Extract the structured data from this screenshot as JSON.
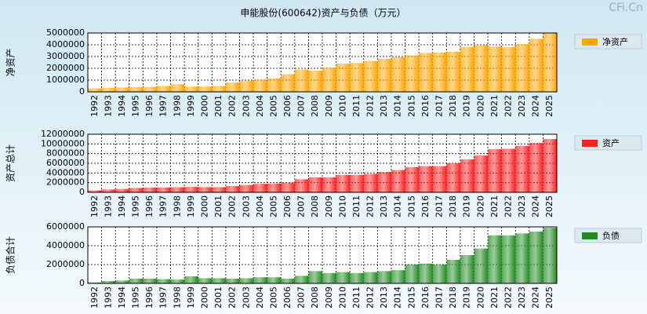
{
  "title": "申能股份(600642)资产与负债（万元）",
  "watermark": "CFi.Cn",
  "chart_data": [
    {
      "type": "bar",
      "ylabel": "净资产",
      "categories": [
        "1992",
        "1993",
        "1994",
        "1995",
        "1996",
        "1997",
        "1998",
        "1999",
        "2000",
        "2001",
        "2002",
        "2003",
        "2004",
        "2005",
        "2006",
        "2007",
        "2008",
        "2009",
        "2010",
        "2011",
        "2012",
        "2013",
        "2014",
        "2015",
        "2016",
        "2017",
        "2018",
        "2019",
        "2020",
        "2021",
        "2022",
        "2023",
        "2024",
        "2025"
      ],
      "series": [
        {
          "name": "净资产",
          "color": "#ffa500",
          "values": [
            300000,
            350000,
            380000,
            400000,
            420000,
            500000,
            650000,
            450000,
            450000,
            500000,
            800000,
            950000,
            1050000,
            1150000,
            1500000,
            1900000,
            1800000,
            2050000,
            2400000,
            2450000,
            2600000,
            2800000,
            2950000,
            3100000,
            3300000,
            3350000,
            3400000,
            3800000,
            3950000,
            3850000,
            3800000,
            4050000,
            4500000,
            5000000
          ]
        }
      ],
      "ylim": [
        0,
        5000000
      ],
      "yticks": [
        0,
        1000000,
        2000000,
        3000000,
        4000000,
        5000000
      ],
      "grid": true
    },
    {
      "type": "bar",
      "ylabel": "资产总计",
      "categories": [
        "1992",
        "1993",
        "1994",
        "1995",
        "1996",
        "1997",
        "1998",
        "1999",
        "2000",
        "2001",
        "2002",
        "2003",
        "2004",
        "2005",
        "2006",
        "2007",
        "2008",
        "2009",
        "2010",
        "2011",
        "2012",
        "2013",
        "2014",
        "2015",
        "2016",
        "2017",
        "2018",
        "2019",
        "2020",
        "2021",
        "2022",
        "2023",
        "2024",
        "2025"
      ],
      "series": [
        {
          "name": "资产",
          "color": "#ff2020",
          "values": [
            400000,
            600000,
            700000,
            900000,
            1000000,
            1000000,
            1050000,
            1100000,
            1050000,
            1050000,
            1300000,
            1500000,
            1750000,
            1800000,
            2000000,
            2700000,
            3100000,
            3100000,
            3600000,
            3600000,
            3800000,
            4200000,
            4600000,
            5200000,
            5400000,
            5400000,
            6000000,
            6800000,
            7600000,
            8900000,
            9000000,
            9600000,
            10200000,
            11000000
          ]
        }
      ],
      "ylim": [
        0,
        12000000
      ],
      "yticks": [
        0,
        2000000,
        4000000,
        6000000,
        8000000,
        10000000,
        12000000
      ],
      "grid": true
    },
    {
      "type": "bar",
      "ylabel": "负债合计",
      "categories": [
        "1992",
        "1993",
        "1994",
        "1995",
        "1996",
        "1997",
        "1998",
        "1999",
        "2000",
        "2001",
        "2002",
        "2003",
        "2004",
        "2005",
        "2006",
        "2007",
        "2008",
        "2009",
        "2010",
        "2011",
        "2012",
        "2013",
        "2014",
        "2015",
        "2016",
        "2017",
        "2018",
        "2019",
        "2020",
        "2021",
        "2022",
        "2023",
        "2024",
        "2025"
      ],
      "series": [
        {
          "name": "负债",
          "color": "#228b22",
          "values": [
            100000,
            250000,
            300000,
            500000,
            500000,
            450000,
            400000,
            750000,
            550000,
            550000,
            500000,
            550000,
            650000,
            650000,
            500000,
            800000,
            1300000,
            1100000,
            1200000,
            1100000,
            1200000,
            1300000,
            1400000,
            2000000,
            2100000,
            2000000,
            2500000,
            3000000,
            3700000,
            5100000,
            5100000,
            5300000,
            5500000,
            5900000
          ]
        }
      ],
      "ylim": [
        0,
        6000000
      ],
      "yticks": [
        0,
        2000000,
        4000000,
        6000000
      ],
      "grid": true
    }
  ]
}
